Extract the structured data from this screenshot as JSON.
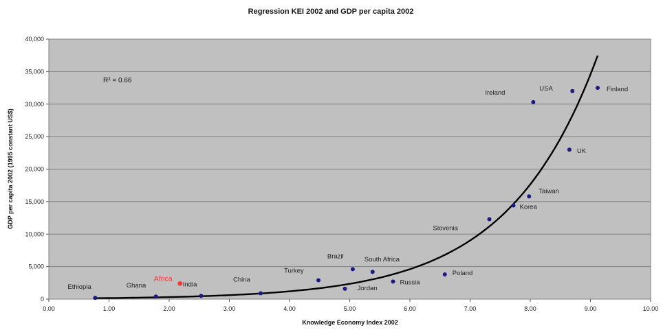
{
  "chart_data": {
    "type": "scatter",
    "title": "Regression KEI 2002 and GDP per capita 2002",
    "xlabel": "Knowledge Economy Index 2002",
    "ylabel": "GDP per capita 2002 (1995 constant US$)",
    "xlim": [
      0,
      10
    ],
    "ylim": [
      0,
      40000
    ],
    "x_ticks": [
      "0.00",
      "1.00",
      "2.00",
      "3.00",
      "4.00",
      "5.00",
      "6.00",
      "7.00",
      "8.00",
      "9.00",
      "10.00"
    ],
    "y_ticks": [
      "0",
      "5,000",
      "10,000",
      "15,000",
      "20,000",
      "25,000",
      "30,000",
      "35,000",
      "40,000"
    ],
    "grid": "horizontal",
    "colors": {
      "plot_bg": "#c0c0c0",
      "points": "#1a1a80",
      "highlight": "#ff3333",
      "trend": "#000000"
    },
    "points": [
      {
        "label": "Ethiopia",
        "x": 0.77,
        "y": 200
      },
      {
        "label": "Ghana",
        "x": 1.78,
        "y": 400
      },
      {
        "label": "India",
        "x": 2.18,
        "y": 2400
      },
      {
        "label": "",
        "x": 2.53,
        "y": 500
      },
      {
        "label": "China",
        "x": 3.52,
        "y": 900
      },
      {
        "label": "Turkey",
        "x": 4.48,
        "y": 2900
      },
      {
        "label": "Brazil",
        "x": 5.05,
        "y": 4600
      },
      {
        "label": "Jordan",
        "x": 4.92,
        "y": 1600
      },
      {
        "label": "South Africa",
        "x": 5.38,
        "y": 4200
      },
      {
        "label": "Russia",
        "x": 5.72,
        "y": 2700
      },
      {
        "label": "Poland",
        "x": 6.58,
        "y": 3800
      },
      {
        "label": "Slovenia",
        "x": 7.32,
        "y": 12300
      },
      {
        "label": "Korea",
        "x": 7.72,
        "y": 14400
      },
      {
        "label": "Taiwan",
        "x": 7.98,
        "y": 15800
      },
      {
        "label": "Ireland",
        "x": 8.05,
        "y": 30300
      },
      {
        "label": "UK",
        "x": 8.65,
        "y": 23000
      },
      {
        "label": "USA",
        "x": 8.7,
        "y": 32000
      },
      {
        "label": "Finland",
        "x": 9.12,
        "y": 32500
      }
    ],
    "highlight": {
      "label": "Africa",
      "x": 2.18,
      "y": 2400
    },
    "trendline": {
      "type": "exponential",
      "a": 82,
      "b": 0.6715,
      "x_start": 0.77,
      "x_end": 9.12
    },
    "annotation": {
      "r2": "R² = 0.66"
    }
  }
}
